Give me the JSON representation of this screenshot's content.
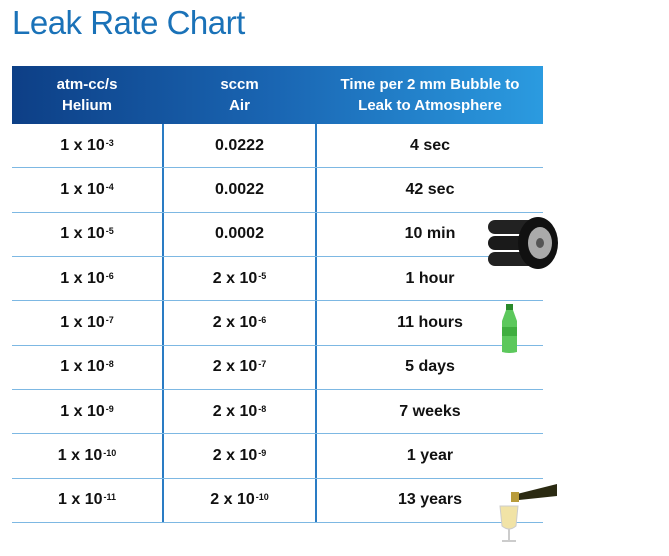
{
  "title": "Leak Rate Chart",
  "table": {
    "header": [
      [
        "atm-cc/s",
        "Helium"
      ],
      [
        "sccm",
        "Air"
      ],
      [
        "Time per 2 mm Bubble to",
        "Leak to Atmosphere"
      ]
    ],
    "rows": [
      [
        {
          "base": "1 x 10",
          "exp": "-3"
        },
        {
          "text": "0.0222"
        },
        {
          "text": "4 sec"
        }
      ],
      [
        {
          "base": "1 x 10",
          "exp": "-4"
        },
        {
          "text": "0.0022"
        },
        {
          "text": "42 sec"
        }
      ],
      [
        {
          "base": "1 x 10",
          "exp": "-5"
        },
        {
          "text": "0.0002"
        },
        {
          "text": "10 min"
        }
      ],
      [
        {
          "base": "1 x 10",
          "exp": "-6"
        },
        {
          "base": "2 x 10",
          "exp": "-5"
        },
        {
          "text": "1 hour"
        }
      ],
      [
        {
          "base": "1 x 10",
          "exp": "-7"
        },
        {
          "base": "2 x 10",
          "exp": "-6"
        },
        {
          "text": "11 hours"
        }
      ],
      [
        {
          "base": "1 x 10",
          "exp": "-8"
        },
        {
          "base": "2 x 10",
          "exp": "-7"
        },
        {
          "text": "5 days"
        }
      ],
      [
        {
          "base": "1 x 10",
          "exp": "-9"
        },
        {
          "base": "2 x 10",
          "exp": "-8"
        },
        {
          "text": "7 weeks"
        }
      ],
      [
        {
          "base": "1 x 10",
          "exp": "-10"
        },
        {
          "base": "2 x 10",
          "exp": "-9"
        },
        {
          "text": "1 year"
        }
      ],
      [
        {
          "base": "1 x 10",
          "exp": "-11"
        },
        {
          "base": "2 x 10",
          "exp": "-10"
        },
        {
          "text": "13 years"
        }
      ]
    ]
  }
}
